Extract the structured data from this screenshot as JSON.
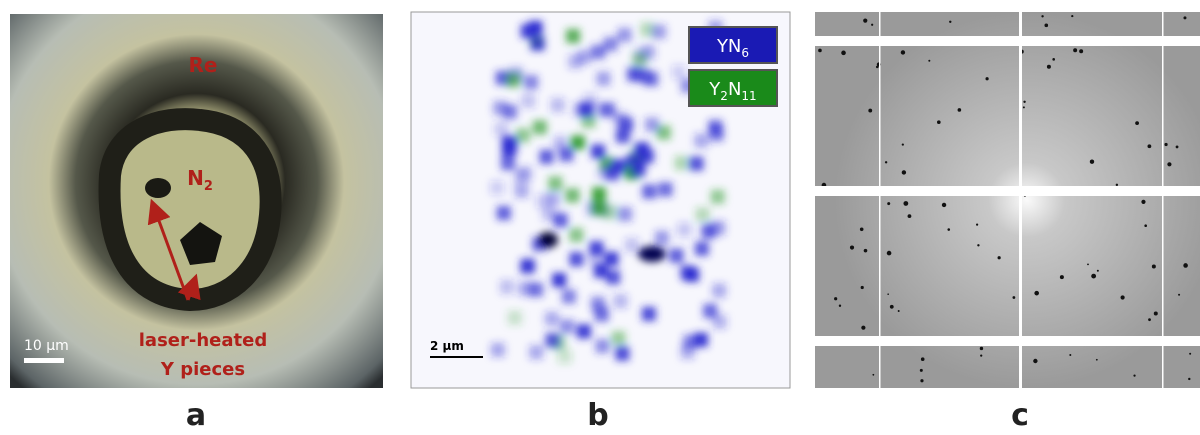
{
  "panel_a": {
    "label": "a",
    "re_label": "Re",
    "n2_label": {
      "text": "N",
      "sub": "2"
    },
    "scale_bar": "10 μm",
    "pointer_label": [
      "laser-heated",
      "Y pieces"
    ]
  },
  "panel_b": {
    "label": "b",
    "legend": [
      {
        "text": "YN",
        "sub": "6"
      },
      {
        "text": "Y",
        "sub": "2",
        "text2": "N",
        "sub2": "11"
      }
    ],
    "scale_bar": "2 μm"
  },
  "panel_c": {
    "label": "c"
  }
}
